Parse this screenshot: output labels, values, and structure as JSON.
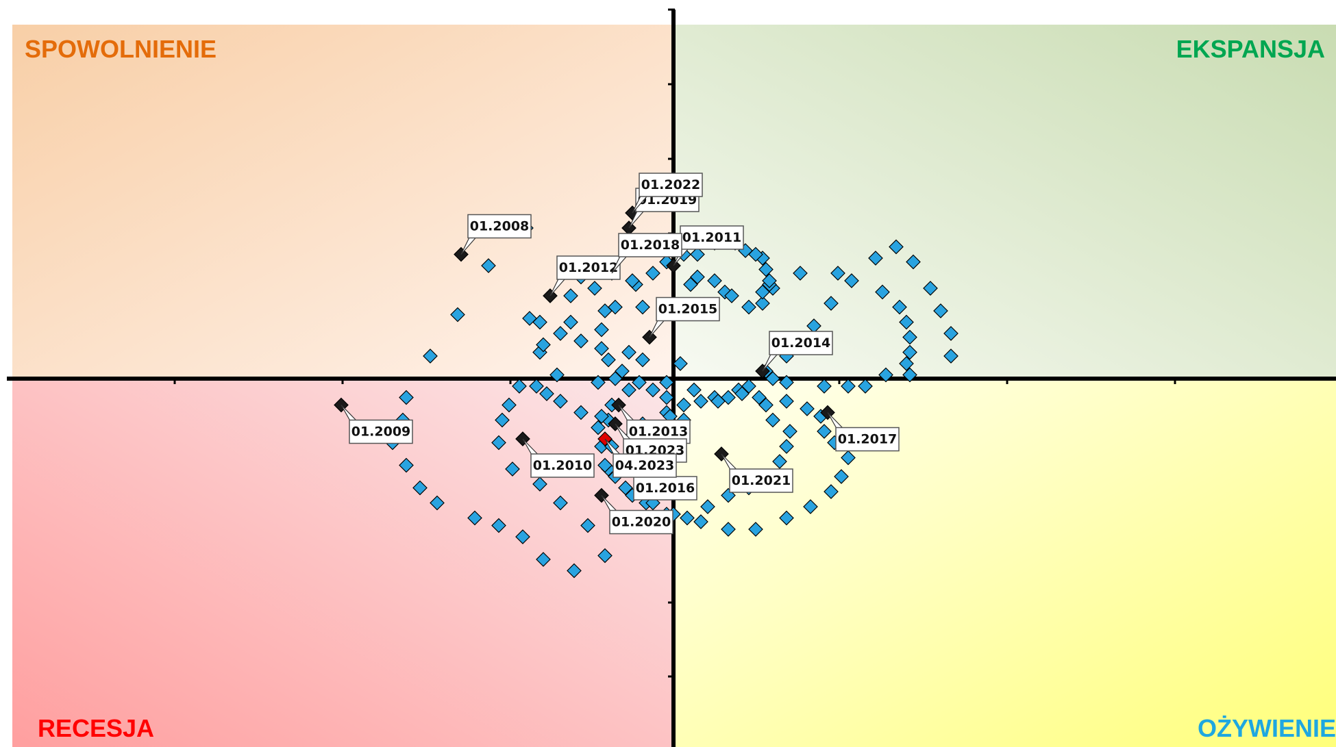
{
  "chart_data": {
    "type": "scatter",
    "title": "",
    "xlabel": "",
    "ylabel": "",
    "xlim": [
      -100,
      100
    ],
    "ylim": [
      -55,
      55
    ],
    "grid": false,
    "legend": "none",
    "quadrants": {
      "top_left": {
        "label": "SPOWOLNIENIE",
        "color": "#e46c0a"
      },
      "top_right": {
        "label": "EKSPANSJA",
        "color": "#00a651"
      },
      "bottom_left": {
        "label": "RECESJA",
        "color": "#ff0000"
      },
      "bottom_right": {
        "label": "OŻYWIENIE",
        "color": "#1fa7e0"
      }
    },
    "colors": {
      "point": "#29a3e0",
      "highlight": "#1a1a1a",
      "latest": "#e00000"
    },
    "series": [
      {
        "values": [
          [
            -43,
            40
          ],
          [
            -54,
            30
          ],
          [
            -63,
            17
          ],
          [
            -71,
            6
          ],
          [
            -78,
            -5
          ],
          [
            -79,
            -11
          ],
          [
            -82,
            -17
          ],
          [
            -78,
            -23
          ],
          [
            -74,
            -29
          ],
          [
            -69,
            -33
          ],
          [
            -58,
            -37
          ],
          [
            -51,
            -39
          ],
          [
            -44,
            -42
          ],
          [
            -38,
            -48
          ],
          [
            -29,
            -51
          ],
          [
            -20,
            -47
          ],
          [
            -25,
            -39
          ],
          [
            -33,
            -33
          ],
          [
            -39,
            -28
          ],
          [
            -47,
            -24
          ],
          [
            -51,
            -17
          ],
          [
            -50,
            -11
          ],
          [
            -48,
            -7
          ],
          [
            -45,
            -2
          ],
          [
            -34,
            1
          ],
          [
            -15,
            2
          ],
          [
            -2,
            -1
          ],
          [
            6,
            -3
          ],
          [
            12,
            -5
          ],
          [
            19,
            -3
          ],
          [
            27,
            2
          ],
          [
            33,
            6
          ],
          [
            37,
            10
          ],
          [
            41,
            14
          ],
          [
            46,
            20
          ],
          [
            52,
            26
          ],
          [
            59,
            32
          ],
          [
            65,
            35
          ],
          [
            70,
            31
          ],
          [
            75,
            24
          ],
          [
            78,
            18
          ],
          [
            81,
            12
          ],
          [
            81,
            6
          ],
          [
            69,
            1
          ],
          [
            56,
            -2
          ],
          [
            44,
            -2
          ],
          [
            33,
            -1
          ],
          [
            22,
            -2
          ],
          [
            13,
            -6
          ],
          [
            3,
            -11
          ],
          [
            -9,
            -12
          ],
          [
            -19,
            -11
          ],
          [
            -27,
            -9
          ],
          [
            -33,
            -6
          ],
          [
            -37,
            -4
          ],
          [
            -40,
            -2
          ],
          [
            -39,
            7
          ],
          [
            -38,
            9
          ],
          [
            -30,
            15
          ],
          [
            -20,
            18
          ],
          [
            -9,
            19
          ],
          [
            0,
            20
          ],
          [
            15,
            23
          ],
          [
            29,
            24
          ],
          [
            37,
            28
          ],
          [
            48,
            28
          ],
          [
            61,
            23
          ],
          [
            66,
            19
          ],
          [
            68,
            15
          ],
          [
            69,
            11
          ],
          [
            69,
            7
          ],
          [
            68,
            4
          ],
          [
            62,
            1
          ],
          [
            51,
            -2
          ],
          [
            29,
            0
          ],
          [
            2,
            4
          ],
          [
            -9,
            5
          ],
          [
            -13,
            7
          ],
          [
            -21,
            8
          ],
          [
            -27,
            10
          ],
          [
            -33,
            12
          ],
          [
            -39,
            15
          ],
          [
            -42,
            16
          ],
          [
            -30,
            22
          ],
          [
            -27,
            27
          ],
          [
            -23,
            24
          ],
          [
            -11,
            25
          ],
          [
            5,
            25
          ],
          [
            7,
            27
          ],
          [
            12,
            26
          ],
          [
            17,
            22
          ],
          [
            22,
            19
          ],
          [
            26,
            20
          ],
          [
            26,
            23
          ],
          [
            28,
            25
          ],
          [
            28,
            26
          ],
          [
            27,
            29
          ],
          [
            26,
            32
          ],
          [
            24,
            33
          ],
          [
            21,
            34
          ],
          [
            18,
            36
          ],
          [
            12,
            36
          ],
          [
            7,
            33
          ],
          [
            3,
            33
          ],
          [
            -2,
            31
          ],
          [
            -6,
            28
          ],
          [
            -12,
            26
          ],
          [
            -17,
            19
          ],
          [
            -21,
            13
          ],
          [
            -19,
            5
          ],
          [
            -17,
            0
          ],
          [
            -10,
            -1
          ],
          [
            -6,
            -3
          ],
          [
            -2,
            -5
          ],
          [
            3,
            -7
          ],
          [
            8,
            -6
          ],
          [
            16,
            -5
          ],
          [
            20,
            -4
          ],
          [
            25,
            -5
          ],
          [
            33,
            -6
          ],
          [
            39,
            -8
          ],
          [
            43,
            -10
          ],
          [
            44,
            -14
          ],
          [
            47,
            -17
          ],
          [
            51,
            -21
          ],
          [
            49,
            -26
          ],
          [
            46,
            -30
          ],
          [
            40,
            -34
          ],
          [
            33,
            -37
          ],
          [
            24,
            -40
          ],
          [
            16,
            -40
          ],
          [
            8,
            -38
          ],
          [
            -2,
            -36
          ],
          [
            -8,
            -33
          ],
          [
            -14,
            -29
          ],
          [
            -19,
            -24
          ],
          [
            -21,
            -18
          ],
          [
            -22,
            -13
          ],
          [
            -21,
            -10
          ],
          [
            -18,
            -7
          ],
          [
            -22,
            -1
          ],
          [
            -13,
            -3
          ],
          [
            -2,
            -9
          ],
          [
            -1,
            -10
          ],
          [
            -12,
            -15
          ],
          [
            -18,
            -18
          ],
          [
            -20,
            -23
          ],
          [
            -17,
            -26
          ],
          [
            -12,
            -31
          ],
          [
            -6,
            -33
          ],
          [
            0,
            -36
          ],
          [
            4,
            -37
          ],
          [
            10,
            -34
          ],
          [
            16,
            -31
          ],
          [
            22,
            -29
          ],
          [
            27,
            -26
          ],
          [
            31,
            -22
          ],
          [
            33,
            -18
          ],
          [
            34,
            -14
          ],
          [
            29,
            -11
          ],
          [
            27,
            -7
          ]
        ]
      },
      {
        "name": "highlighted",
        "values": [
          [
            -62,
            33,
            "01.2008"
          ],
          [
            -97,
            -7,
            "01.2009"
          ],
          [
            -44,
            -16,
            "01.2010"
          ],
          [
            0,
            30,
            "01.2011"
          ],
          [
            -36,
            22,
            "01.2012"
          ],
          [
            -16,
            -7,
            "01.2013"
          ],
          [
            26,
            2,
            "01.2014"
          ],
          [
            -7,
            11,
            "01.2015"
          ],
          [
            -14,
            -22,
            "01.2016"
          ],
          [
            45,
            -9,
            "01.2017"
          ],
          [
            -18,
            28,
            "01.2018"
          ],
          [
            -13,
            40,
            "01.2019"
          ],
          [
            -21,
            -31,
            "01.2020"
          ],
          [
            14,
            -20,
            "01.2021"
          ],
          [
            -12,
            44,
            "01.2022"
          ],
          [
            -17,
            -12,
            "01.2023"
          ]
        ]
      },
      {
        "name": "latest",
        "values": [
          [
            -20,
            -16,
            "04.2023"
          ]
        ]
      }
    ]
  },
  "annotations": [
    {
      "label": "01.2008"
    },
    {
      "label": "01.2009"
    },
    {
      "label": "01.2010"
    },
    {
      "label": "01.2011"
    },
    {
      "label": "01.2012"
    },
    {
      "label": "01.2013"
    },
    {
      "label": "01.2014"
    },
    {
      "label": "01.2015"
    },
    {
      "label": "01.2016"
    },
    {
      "label": "01.2017"
    },
    {
      "label": "01.2018"
    },
    {
      "label": "01.2019"
    },
    {
      "label": "01.2020"
    },
    {
      "label": "01.2021"
    },
    {
      "label": "01.2022"
    },
    {
      "label": "01.2023"
    },
    {
      "label": "04.2023"
    }
  ]
}
